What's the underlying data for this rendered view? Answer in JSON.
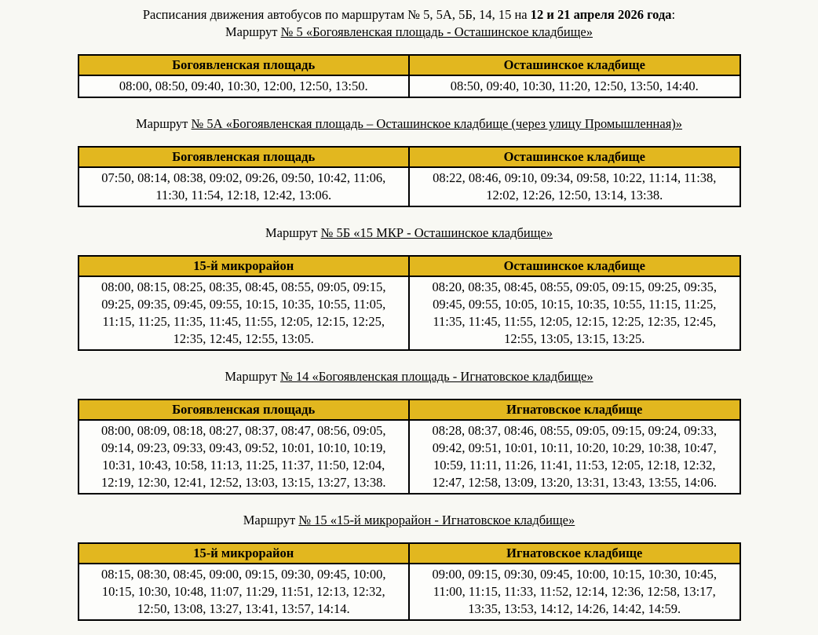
{
  "page": {
    "title_prefix": "Расписания движения автобусов по маршрутам № 5, 5А, 5Б, 14, 15 на ",
    "title_bold": "12 и 21 апреля 2026 года",
    "title_suffix": ":"
  },
  "colors": {
    "page_bg": "#f8f8f3",
    "cell_bg": "#fdfdfb",
    "header_bg": "#e2b71f",
    "border": "#000000"
  },
  "routes": [
    {
      "heading_prefix": "Маршрут ",
      "heading_underlined": "№ 5 «Богоявленская площадь - Осташинское кладбище»",
      "columns": [
        "Богоявленская площадь",
        "Осташинское кладбище"
      ],
      "times": [
        "08:00, 08:50, 09:40, 10:30, 12:00, 12:50, 13:50.",
        "08:50, 09:40, 10:30, 11:20, 12:50, 13:50, 14:40."
      ]
    },
    {
      "heading_prefix": "Маршрут ",
      "heading_underlined": "№ 5А «Богоявленская площадь – Осташинское кладбище (через улицу Промышленная)»",
      "columns": [
        "Богоявленская площадь",
        "Осташинское кладбище"
      ],
      "times": [
        "07:50, 08:14, 08:38, 09:02, 09:26, 09:50, 10:42, 11:06, 11:30, 11:54, 12:18, 12:42, 13:06.",
        "08:22, 08:46, 09:10, 09:34, 09:58, 10:22, 11:14, 11:38, 12:02, 12:26, 12:50, 13:14, 13:38."
      ]
    },
    {
      "heading_prefix": "Маршрут ",
      "heading_underlined": "№ 5Б «15 МКР - Осташинское кладбище»",
      "columns": [
        "15-й микрорайон",
        "Осташинское кладбище"
      ],
      "times": [
        "08:00, 08:15, 08:25, 08:35, 08:45, 08:55, 09:05, 09:15, 09:25, 09:35, 09:45, 09:55, 10:15, 10:35, 10:55, 11:05, 11:15, 11:25, 11:35, 11:45, 11:55, 12:05, 12:15, 12:25, 12:35, 12:45, 12:55, 13:05.",
        "08:20, 08:35, 08:45, 08:55, 09:05, 09:15, 09:25, 09:35, 09:45, 09:55, 10:05, 10:15, 10:35, 10:55, 11:15, 11:25, 11:35, 11:45, 11:55, 12:05, 12:15, 12:25, 12:35, 12:45, 12:55, 13:05, 13:15, 13:25."
      ]
    },
    {
      "heading_prefix": "Маршрут ",
      "heading_underlined": "№ 14 «Богоявленская площадь - Игнатовское кладбище»",
      "columns": [
        "Богоявленская площадь",
        "Игнатовское кладбище"
      ],
      "times": [
        "08:00, 08:09, 08:18, 08:27, 08:37, 08:47, 08:56, 09:05, 09:14, 09:23, 09:33, 09:43, 09:52, 10:01, 10:10, 10:19, 10:31, 10:43, 10:58, 11:13, 11:25, 11:37, 11:50, 12:04, 12:19, 12:30, 12:41, 12:52, 13:03, 13:15, 13:27, 13:38.",
        "08:28, 08:37, 08:46, 08:55, 09:05, 09:15, 09:24, 09:33, 09:42, 09:51, 10:01, 10:11, 10:20, 10:29, 10:38, 10:47, 10:59, 11:11, 11:26, 11:41, 11:53, 12:05, 12:18, 12:32, 12:47, 12:58, 13:09, 13:20, 13:31, 13:43, 13:55, 14:06."
      ]
    },
    {
      "heading_prefix": "Маршрут ",
      "heading_underlined": "№ 15 «15-й микрорайон - Игнатовское кладбище»",
      "columns": [
        "15-й микрорайон",
        "Игнатовское кладбище"
      ],
      "times": [
        "08:15, 08:30, 08:45, 09:00, 09:15, 09:30, 09:45, 10:00, 10:15, 10:30, 10:48, 11:07, 11:29, 11:51, 12:13, 12:32, 12:50, 13:08, 13:27, 13:41, 13:57, 14:14.",
        "09:00, 09:15, 09:30, 09:45, 10:00, 10:15, 10:30, 10:45, 11:00, 11:15, 11:33, 11:52, 12:14, 12:36, 12:58, 13:17, 13:35, 13:53, 14:12, 14:26, 14:42, 14:59."
      ]
    }
  ]
}
